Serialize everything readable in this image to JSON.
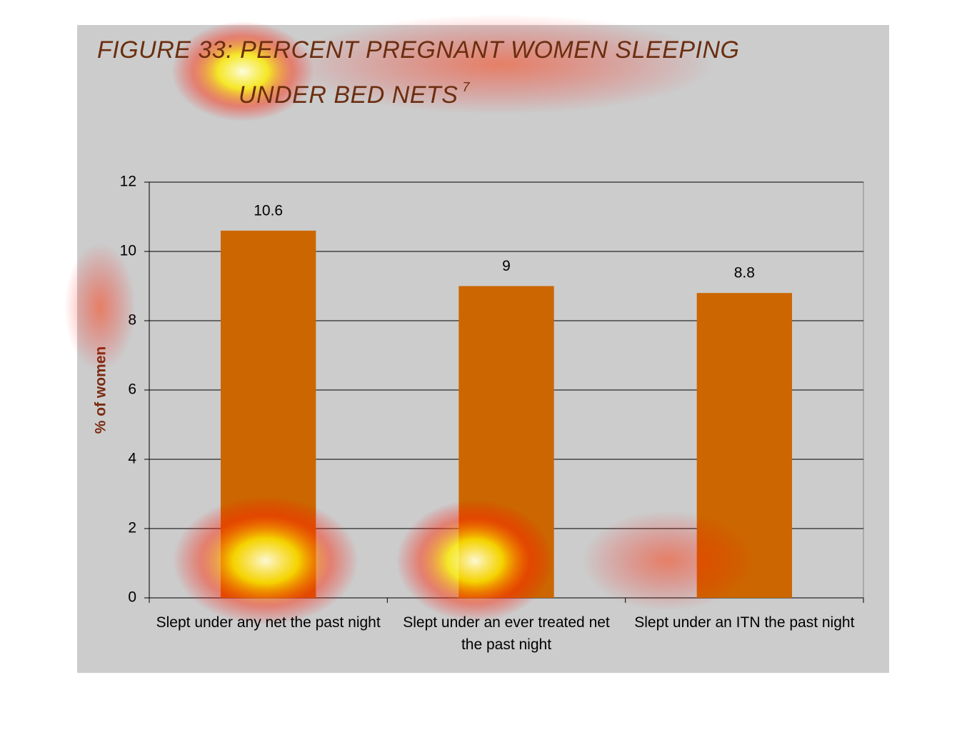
{
  "chart_data": {
    "type": "bar",
    "title": "FIGURE 33: PERCENT PREGNANT WOMEN SLEEPING UNDER BED NETS",
    "title_footnote": "7",
    "y_label": "% of women",
    "categories": [
      "Slept under any net the past night",
      "Slept under an ever treated net the past night",
      "Slept under an ITN the past night"
    ],
    "values": [
      10.6,
      9,
      8.8
    ],
    "color": "#cc6600",
    "ylim": [
      0,
      12
    ],
    "yticks": [
      0,
      2,
      4,
      6,
      8,
      10,
      12
    ],
    "grid": true
  }
}
